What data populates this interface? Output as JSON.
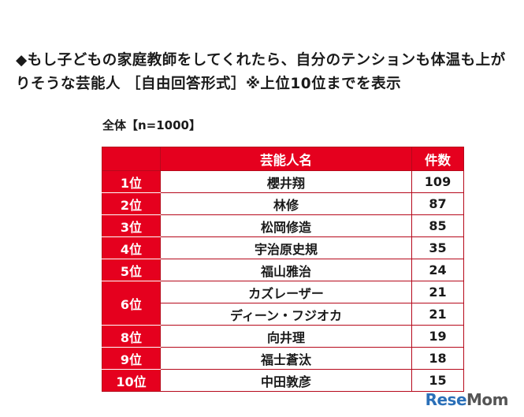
{
  "title": "◆もし子どもの家庭教師をしてくれたら、自分のテンションも体温も上がりそうな芸能人 ［自由回答形式］※上位10位までを表示",
  "subtitle": "全体【n=1000】",
  "table": {
    "headers": {
      "rank": "",
      "name": "芸能人名",
      "count": "件数"
    },
    "rows": [
      {
        "rank": "1位",
        "name": "櫻井翔",
        "count": "109"
      },
      {
        "rank": "2位",
        "name": "林修",
        "count": "87"
      },
      {
        "rank": "3位",
        "name": "松岡修造",
        "count": "85"
      },
      {
        "rank": "4位",
        "name": "宇治原史規",
        "count": "35"
      },
      {
        "rank": "5位",
        "name": "福山雅治",
        "count": "24"
      },
      {
        "rank": "6位",
        "name": "カズレーザー",
        "count": "21"
      },
      {
        "rank": "",
        "name": "ディーン・フジオカ",
        "count": "21"
      },
      {
        "rank": "8位",
        "name": "向井理",
        "count": "19"
      },
      {
        "rank": "9位",
        "name": "福士蒼汰",
        "count": "18"
      },
      {
        "rank": "10位",
        "name": "中田敦彦",
        "count": "15"
      }
    ]
  },
  "logo": {
    "text_a": "Rese",
    "text_b": "Mom"
  },
  "colors": {
    "accent": "#e5001e"
  }
}
